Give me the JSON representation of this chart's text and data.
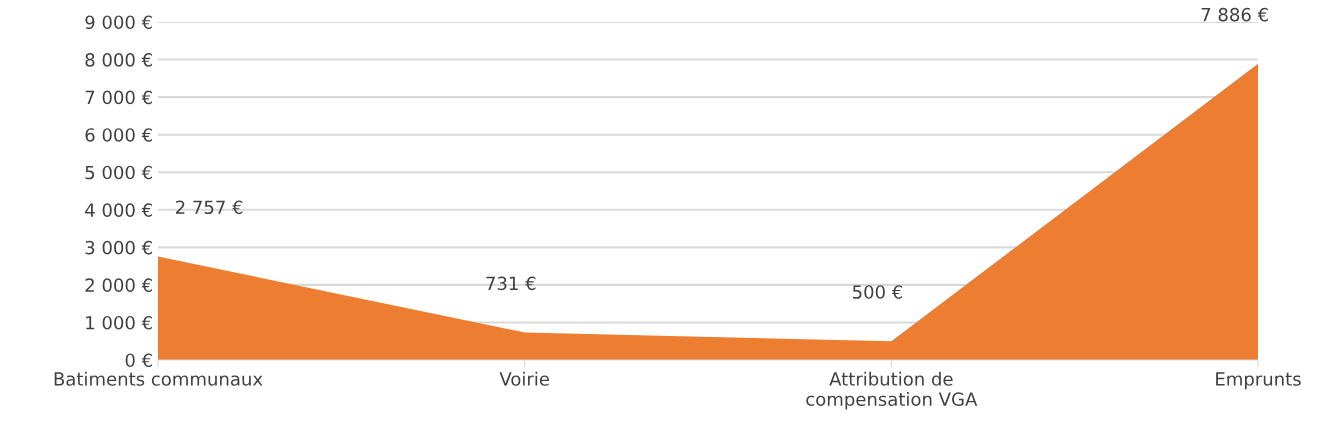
{
  "chart_data": {
    "type": "area",
    "categories": [
      "Batiments communaux",
      "Voirie",
      "Attribution de\ncompensation VGA",
      "Emprunts"
    ],
    "series": [
      {
        "color": "#ed7d31",
        "values": [
          2757,
          731,
          500,
          7886
        ],
        "value_labels": [
          "2 757 €",
          "731 €",
          "500 €",
          "7 886 €"
        ]
      }
    ],
    "ylim": [
      0,
      9000
    ],
    "yticks": [
      {
        "value": 0,
        "label": "0 €"
      },
      {
        "value": 1000,
        "label": "1 000 €"
      },
      {
        "value": 2000,
        "label": "2 000 €"
      },
      {
        "value": 3000,
        "label": "3 000 €"
      },
      {
        "value": 4000,
        "label": "4 000 €"
      },
      {
        "value": 5000,
        "label": "5 000 €"
      },
      {
        "value": 6000,
        "label": "6 000 €"
      },
      {
        "value": 7000,
        "label": "7 000 €"
      },
      {
        "value": 8000,
        "label": "8 000 €"
      },
      {
        "value": 9000,
        "label": "9 000 €"
      }
    ],
    "grid": "y"
  }
}
